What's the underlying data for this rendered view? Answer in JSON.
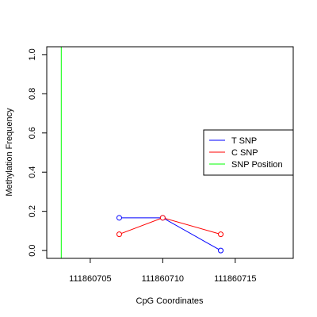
{
  "chart_data": {
    "type": "line",
    "xlabel": "CpG Coordinates",
    "ylabel": "Methylation Frequency",
    "xlim": [
      111860702,
      111860719
    ],
    "ylim": [
      -0.04,
      1.04
    ],
    "x_ticks": [
      111860705,
      111860710,
      111860715
    ],
    "x_tick_labels": [
      "111860705",
      "111860710",
      "111860715"
    ],
    "y_ticks": [
      0.0,
      0.2,
      0.4,
      0.6,
      0.8,
      1.0
    ],
    "y_tick_labels": [
      "0.0",
      "0.2",
      "0.4",
      "0.6",
      "0.8",
      "1.0"
    ],
    "grid": false,
    "legend_position": "right",
    "series": [
      {
        "name": "T SNP",
        "color": "#0000ff",
        "x": [
          111860707,
          111860710,
          111860714
        ],
        "y": [
          0.167,
          0.167,
          0.0
        ]
      },
      {
        "name": "C SNP",
        "color": "#ff0000",
        "x": [
          111860707,
          111860710,
          111860714
        ],
        "y": [
          0.083,
          0.167,
          0.083
        ]
      }
    ],
    "snp_position": {
      "name": "SNP Position",
      "color": "#00ff00",
      "x": 111860703
    }
  }
}
